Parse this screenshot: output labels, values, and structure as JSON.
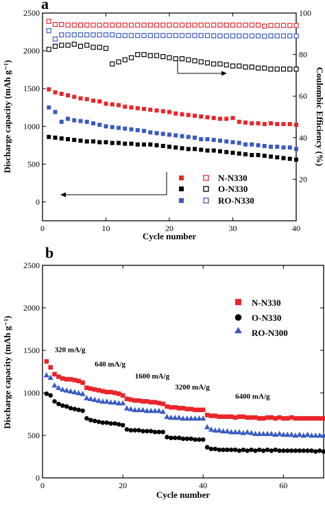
{
  "chart_data": [
    {
      "type": "scatter",
      "panel_label": "a",
      "xlabel": "Cycle number",
      "ylabel": "Discharge capacity (mAh g⁻¹)",
      "y2label": "Coulombic Efficiency (%)",
      "xlim": [
        0,
        40
      ],
      "ylim": [
        -250,
        2500
      ],
      "y2lim": [
        0,
        100
      ],
      "xticks": [
        0,
        10,
        20,
        30,
        40
      ],
      "yticks": [
        0,
        500,
        1000,
        1500,
        2000,
        2500
      ],
      "y2ticks": [
        20,
        40,
        60,
        80,
        100
      ],
      "legend_position": "bottom-right",
      "series": [
        {
          "name": "N-N330",
          "axis": "left",
          "marker": "filled-square",
          "color": "#e8262a",
          "x": [
            1,
            2,
            3,
            4,
            5,
            6,
            7,
            8,
            9,
            10,
            11,
            12,
            13,
            14,
            15,
            16,
            17,
            18,
            19,
            20,
            21,
            22,
            23,
            24,
            25,
            26,
            27,
            28,
            29,
            30,
            31,
            32,
            33,
            34,
            35,
            36,
            37,
            38,
            39,
            40
          ],
          "values": [
            1490,
            1450,
            1430,
            1410,
            1390,
            1370,
            1360,
            1340,
            1330,
            1300,
            1290,
            1280,
            1260,
            1250,
            1240,
            1230,
            1220,
            1210,
            1200,
            1190,
            1170,
            1160,
            1150,
            1140,
            1130,
            1120,
            1110,
            1100,
            1100,
            1110,
            1060,
            1050,
            1040,
            1040,
            1030,
            1040,
            1030,
            1030,
            1030,
            1020
          ]
        },
        {
          "name": "N-N330",
          "axis": "right",
          "marker": "open-square",
          "color": "#e8262a",
          "x": [
            1,
            2,
            3,
            4,
            5,
            6,
            7,
            8,
            9,
            10,
            11,
            12,
            13,
            14,
            15,
            16,
            17,
            18,
            19,
            20,
            21,
            22,
            23,
            24,
            25,
            26,
            27,
            28,
            29,
            30,
            31,
            32,
            33,
            34,
            35,
            36,
            37,
            38,
            39,
            40
          ],
          "values": [
            96,
            94.5,
            94.5,
            94.2,
            94.2,
            94.2,
            94.2,
            94.2,
            94.2,
            94.2,
            94.2,
            94.2,
            94.2,
            94.2,
            94.2,
            94.2,
            94.2,
            94.2,
            94.2,
            94.2,
            94.2,
            94.2,
            94.2,
            94.2,
            94.2,
            94.2,
            94.2,
            94.2,
            94.2,
            94.2,
            94.2,
            94.2,
            94.2,
            94.2,
            93.7,
            94,
            94,
            94,
            94,
            94
          ]
        },
        {
          "name": "O-N330",
          "axis": "left",
          "marker": "filled-square",
          "color": "#000000",
          "x": [
            1,
            2,
            3,
            4,
            5,
            6,
            7,
            8,
            9,
            10,
            11,
            12,
            13,
            14,
            15,
            16,
            17,
            18,
            19,
            20,
            21,
            22,
            23,
            24,
            25,
            26,
            27,
            28,
            29,
            30,
            31,
            32,
            33,
            34,
            35,
            36,
            37,
            38,
            39,
            40
          ],
          "values": [
            860,
            850,
            840,
            830,
            820,
            810,
            800,
            800,
            790,
            790,
            780,
            780,
            770,
            770,
            760,
            760,
            760,
            750,
            740,
            730,
            720,
            710,
            700,
            700,
            690,
            680,
            680,
            670,
            660,
            650,
            640,
            630,
            620,
            620,
            610,
            600,
            590,
            580,
            570,
            560
          ]
        },
        {
          "name": "O-N330",
          "axis": "right",
          "marker": "open-square",
          "color": "#000000",
          "x": [
            1,
            2,
            3,
            4,
            5,
            6,
            7,
            8,
            9,
            10,
            11,
            12,
            13,
            14,
            15,
            16,
            17,
            18,
            19,
            20,
            21,
            22,
            23,
            24,
            25,
            26,
            27,
            28,
            29,
            30,
            31,
            32,
            33,
            34,
            35,
            36,
            37,
            38,
            39,
            40
          ],
          "values": [
            82.5,
            84,
            84.5,
            84.5,
            85,
            84,
            84.5,
            83.5,
            83.5,
            83,
            75.5,
            76.5,
            77.5,
            78.5,
            80,
            80,
            79.5,
            79.5,
            79,
            78.5,
            78,
            78,
            77.5,
            77,
            76.5,
            76,
            75.5,
            75.5,
            75,
            74.5,
            74.5,
            74,
            74,
            73.5,
            73.5,
            73,
            73,
            73,
            73,
            73
          ]
        },
        {
          "name": "RO-N330",
          "axis": "left",
          "marker": "filled-square",
          "color": "#3a5bbf",
          "x": [
            1,
            2,
            3,
            4,
            5,
            6,
            7,
            8,
            9,
            10,
            11,
            12,
            13,
            14,
            15,
            16,
            17,
            18,
            19,
            20,
            21,
            22,
            23,
            24,
            25,
            26,
            27,
            28,
            29,
            30,
            31,
            32,
            33,
            34,
            35,
            36,
            37,
            38,
            39,
            40
          ],
          "values": [
            1250,
            1190,
            1060,
            1100,
            1080,
            1070,
            1060,
            1040,
            1020,
            1000,
            990,
            980,
            970,
            960,
            950,
            940,
            920,
            910,
            900,
            890,
            880,
            870,
            860,
            850,
            830,
            830,
            820,
            810,
            800,
            790,
            780,
            760,
            760,
            750,
            740,
            730,
            730,
            720,
            720,
            700
          ]
        },
        {
          "name": "RO-N330",
          "axis": "right",
          "marker": "open-square",
          "color": "#3a5bbf",
          "x": [
            1,
            2,
            3,
            4,
            5,
            6,
            7,
            8,
            9,
            10,
            11,
            12,
            13,
            14,
            15,
            16,
            17,
            18,
            19,
            20,
            21,
            22,
            23,
            24,
            25,
            26,
            27,
            28,
            29,
            30,
            31,
            32,
            33,
            34,
            35,
            36,
            37,
            38,
            39,
            40
          ],
          "values": [
            91.5,
            87.5,
            89.5,
            89.5,
            89.5,
            89.5,
            89.5,
            89.5,
            89.5,
            89.5,
            89.5,
            89.2,
            89.2,
            89.2,
            89.2,
            89.2,
            89.2,
            89.2,
            89.2,
            89.2,
            89.2,
            89.2,
            89.2,
            89.2,
            89.2,
            89.2,
            89,
            89,
            89,
            89,
            89,
            89,
            89,
            89,
            88.8,
            89,
            89,
            89,
            89,
            89
          ]
        }
      ],
      "annotations": [
        {
          "type": "arrow",
          "direction": "left",
          "points_to": "left-axis"
        },
        {
          "type": "arrow",
          "direction": "right",
          "points_to": "right-axis"
        }
      ]
    },
    {
      "type": "scatter",
      "panel_label": "b",
      "xlabel": "Cycle number",
      "ylabel": "Discharge capacity (mAh g⁻¹)",
      "xlim": [
        0,
        70
      ],
      "ylim": [
        0,
        2500
      ],
      "xticks": [
        0,
        20,
        40,
        60
      ],
      "yticks": [
        0,
        500,
        1000,
        1500,
        2000,
        2500
      ],
      "legend_position": "top-right",
      "series": [
        {
          "name": "N-N330",
          "marker": "square",
          "color": "#e8262a",
          "x": [
            1,
            2,
            3,
            4,
            5,
            6,
            7,
            8,
            9,
            10,
            11,
            12,
            13,
            14,
            15,
            16,
            17,
            18,
            19,
            20,
            21,
            22,
            23,
            24,
            25,
            26,
            27,
            28,
            29,
            30,
            31,
            32,
            33,
            34,
            35,
            36,
            37,
            38,
            39,
            40,
            41,
            42,
            43,
            44,
            45,
            46,
            47,
            48,
            49,
            50,
            51,
            52,
            53,
            54,
            55,
            56,
            57,
            58,
            59,
            60,
            61,
            62,
            63,
            64,
            65,
            66,
            67,
            68,
            69,
            70
          ],
          "values": [
            1370,
            1300,
            1220,
            1190,
            1170,
            1160,
            1160,
            1150,
            1140,
            1120,
            1060,
            1050,
            1040,
            1030,
            1020,
            1010,
            1010,
            1000,
            990,
            970,
            930,
            920,
            910,
            910,
            900,
            900,
            890,
            890,
            880,
            870,
            840,
            830,
            830,
            820,
            820,
            810,
            810,
            800,
            800,
            800,
            740,
            730,
            730,
            720,
            720,
            720,
            720,
            710,
            720,
            720,
            710,
            710,
            710,
            700,
            700,
            710,
            710,
            700,
            710,
            700,
            700,
            710,
            700,
            700,
            700,
            700,
            700,
            700,
            700,
            700
          ]
        },
        {
          "name": "O-N330",
          "marker": "circle",
          "color": "#000000",
          "x": [
            1,
            2,
            3,
            4,
            5,
            6,
            7,
            8,
            9,
            10,
            11,
            12,
            13,
            14,
            15,
            16,
            17,
            18,
            19,
            20,
            21,
            22,
            23,
            24,
            25,
            26,
            27,
            28,
            29,
            30,
            31,
            32,
            33,
            34,
            35,
            36,
            37,
            38,
            39,
            40,
            41,
            42,
            43,
            44,
            45,
            46,
            47,
            48,
            49,
            50,
            51,
            52,
            53,
            54,
            55,
            56,
            57,
            58,
            59,
            60,
            61,
            62,
            63,
            64,
            65,
            66,
            67,
            68,
            69,
            70
          ],
          "values": [
            990,
            970,
            900,
            870,
            850,
            840,
            820,
            810,
            800,
            790,
            700,
            680,
            670,
            660,
            650,
            650,
            640,
            640,
            630,
            620,
            570,
            560,
            560,
            560,
            550,
            550,
            550,
            540,
            540,
            540,
            480,
            470,
            470,
            470,
            460,
            460,
            460,
            450,
            450,
            450,
            360,
            340,
            340,
            330,
            330,
            330,
            330,
            330,
            320,
            330,
            320,
            330,
            320,
            330,
            320,
            330,
            320,
            330,
            320,
            320,
            320,
            320,
            320,
            320,
            320,
            320,
            320,
            310,
            320,
            310
          ]
        },
        {
          "name": "RO-N300",
          "marker": "triangle",
          "color": "#3a5bbf",
          "x": [
            1,
            2,
            3,
            4,
            5,
            6,
            7,
            8,
            9,
            10,
            11,
            12,
            13,
            14,
            15,
            16,
            17,
            18,
            19,
            20,
            21,
            22,
            23,
            24,
            25,
            26,
            27,
            28,
            29,
            30,
            31,
            32,
            33,
            34,
            35,
            36,
            37,
            38,
            39,
            40,
            41,
            42,
            43,
            44,
            45,
            46,
            47,
            48,
            49,
            50,
            51,
            52,
            53,
            54,
            55,
            56,
            57,
            58,
            59,
            60,
            61,
            62,
            63,
            64,
            65,
            66,
            67,
            68,
            69,
            70
          ],
          "values": [
            1210,
            1180,
            1090,
            1060,
            1040,
            1030,
            1020,
            1010,
            1000,
            990,
            940,
            930,
            920,
            910,
            900,
            900,
            890,
            890,
            880,
            880,
            820,
            810,
            800,
            800,
            800,
            790,
            790,
            790,
            790,
            780,
            720,
            710,
            710,
            710,
            700,
            700,
            700,
            700,
            700,
            700,
            600,
            570,
            560,
            560,
            550,
            550,
            540,
            540,
            540,
            530,
            540,
            530,
            520,
            520,
            520,
            520,
            520,
            510,
            520,
            510,
            510,
            510,
            500,
            510,
            500,
            510,
            500,
            500,
            500,
            500
          ]
        }
      ],
      "annotations": [
        {
          "text": "320 mA/g",
          "x": 3,
          "y": 1480
        },
        {
          "text": "640 mA/g",
          "x": 13,
          "y": 1310
        },
        {
          "text": "1600 mA/g",
          "x": 23,
          "y": 1170
        },
        {
          "text": "3200 mA/g",
          "x": 33,
          "y": 1040
        },
        {
          "text": "6400 mA/g",
          "x": 48,
          "y": 930
        }
      ]
    }
  ]
}
